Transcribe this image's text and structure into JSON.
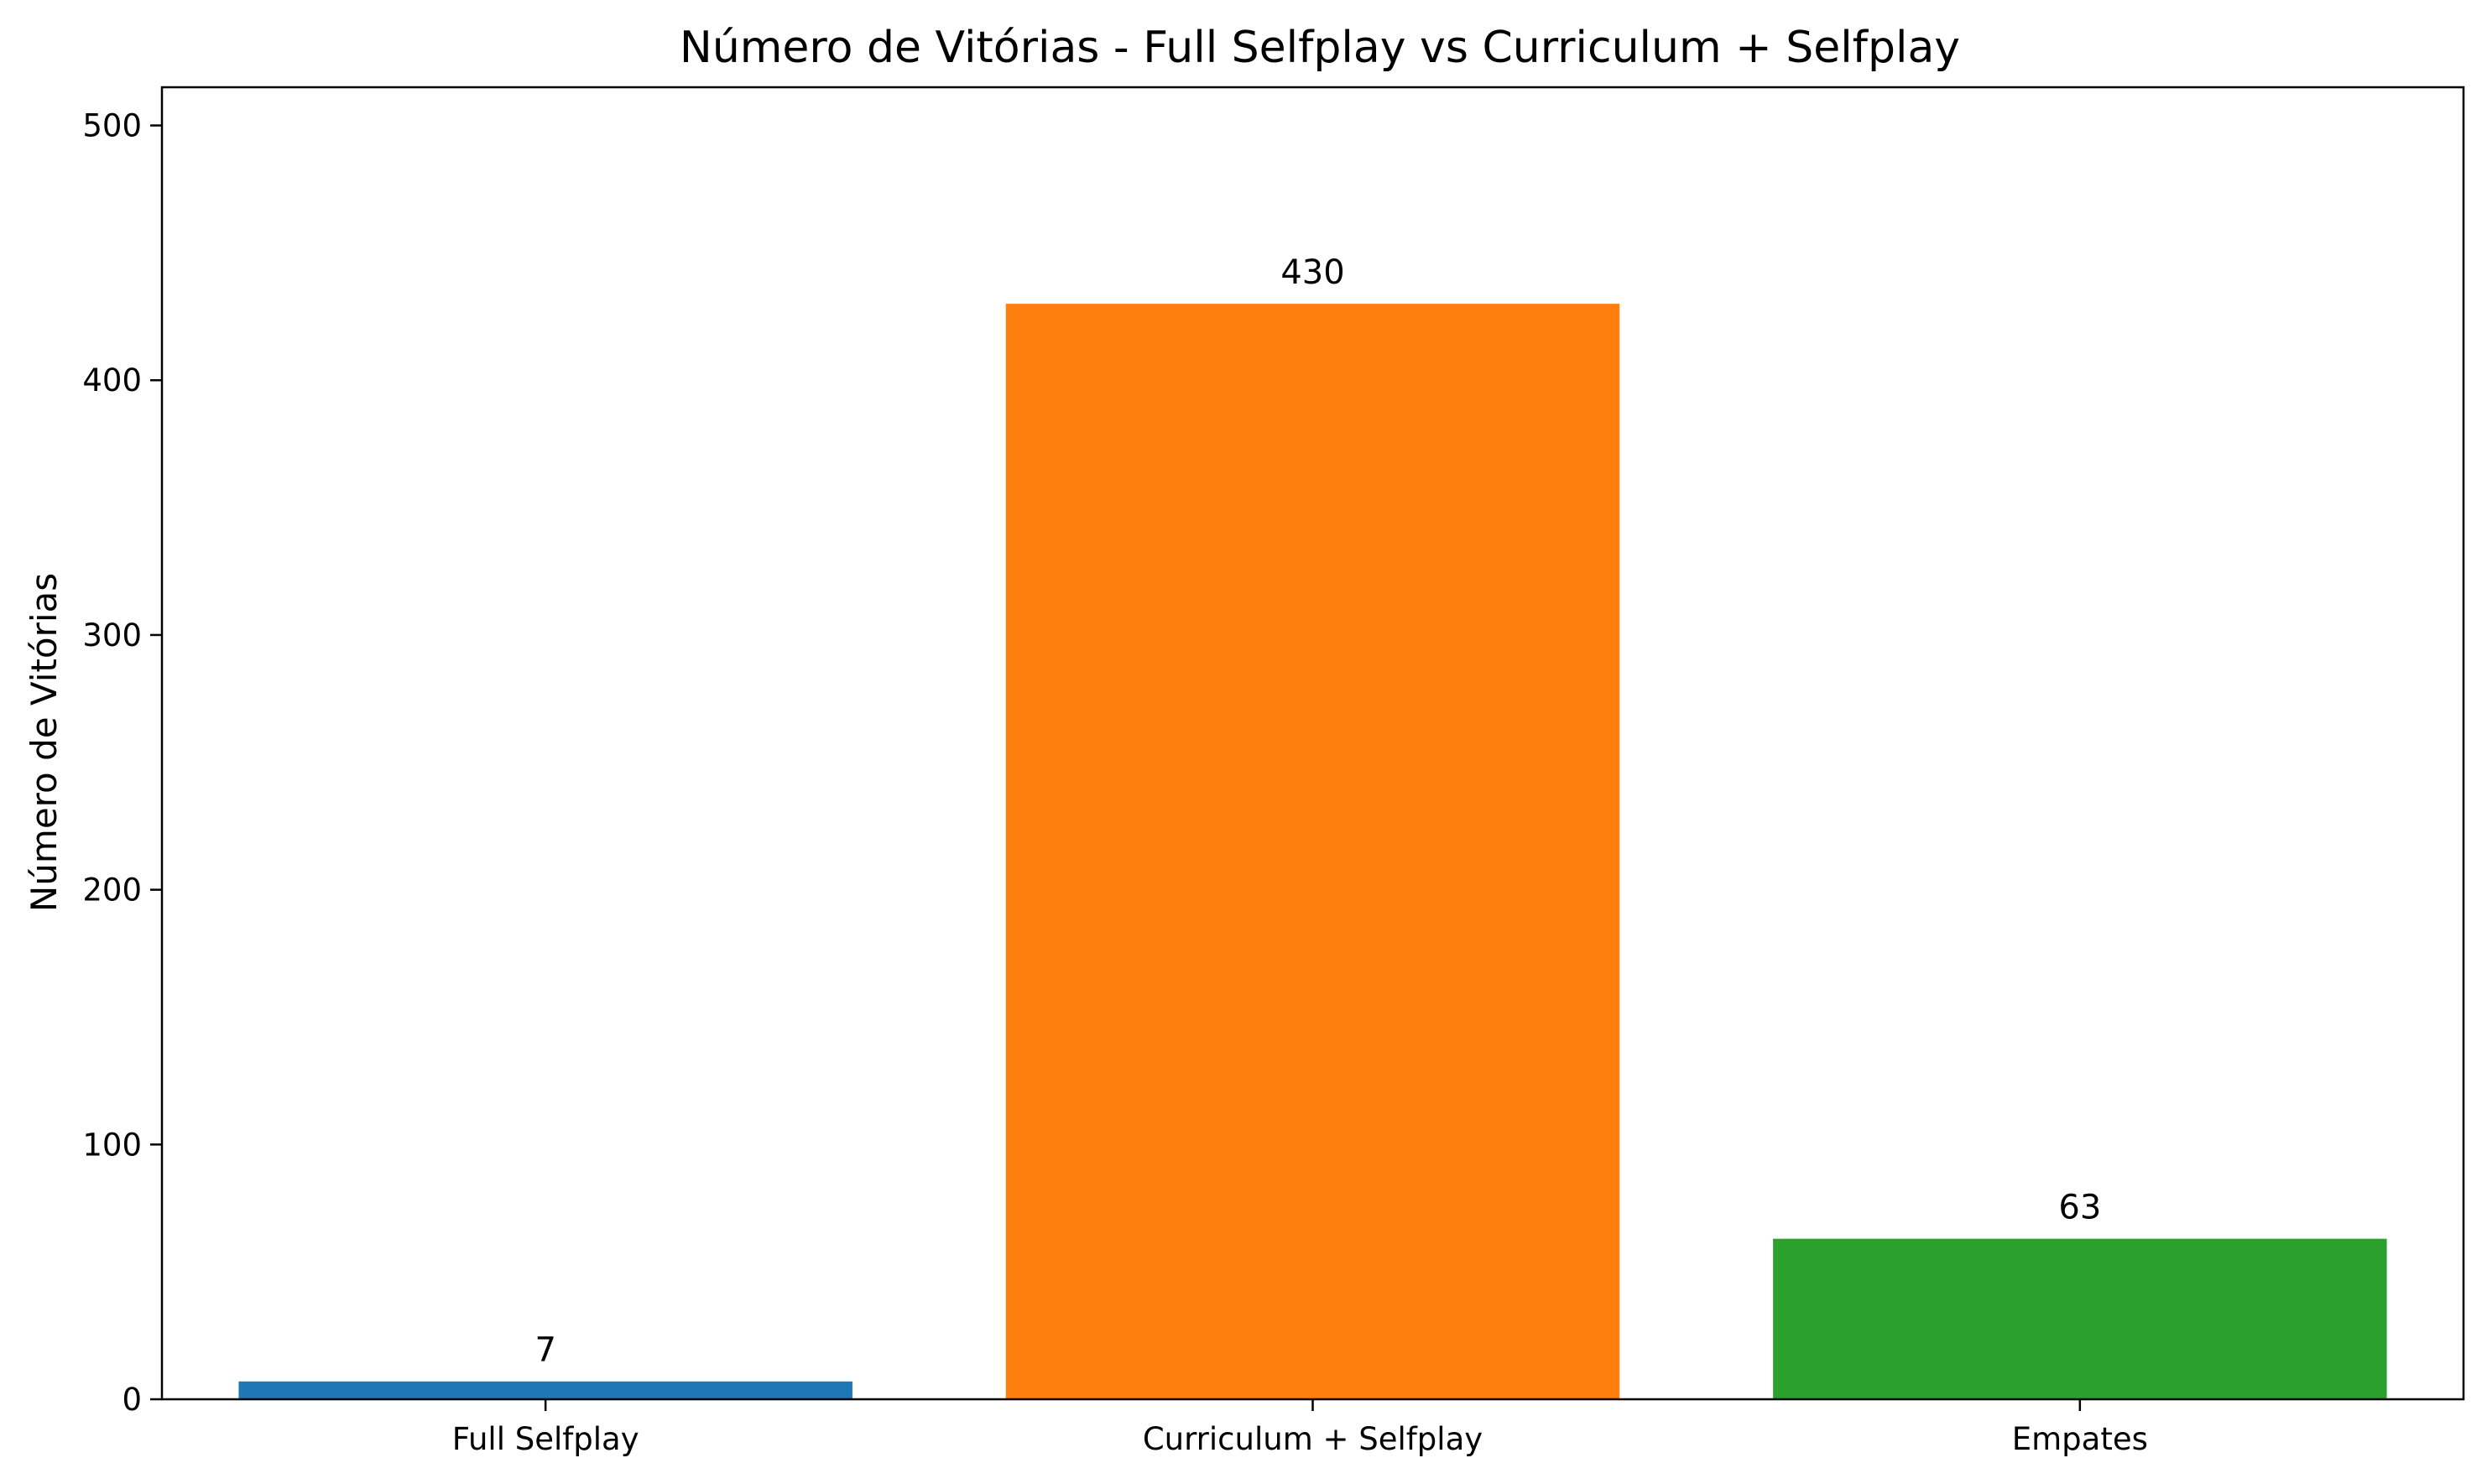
{
  "chart_data": {
    "type": "bar",
    "title": "Número de Vitórias - Full Selfplay vs Curriculum + Selfplay",
    "xlabel": "",
    "ylabel": "Número de Vitórias",
    "categories": [
      "Full Selfplay",
      "Curriculum + Selfplay",
      "Empates"
    ],
    "values": [
      7,
      430,
      63
    ],
    "value_labels": [
      "7",
      "430",
      "63"
    ],
    "colors": [
      "#1f77b4",
      "#ff7f0e",
      "#2ca02c"
    ],
    "ylim": [
      0,
      515
    ],
    "yticks": [
      0,
      100,
      200,
      300,
      400,
      500
    ],
    "ytick_labels": [
      "0",
      "100",
      "200",
      "300",
      "400",
      "500"
    ],
    "grid": false,
    "legend": "none"
  }
}
